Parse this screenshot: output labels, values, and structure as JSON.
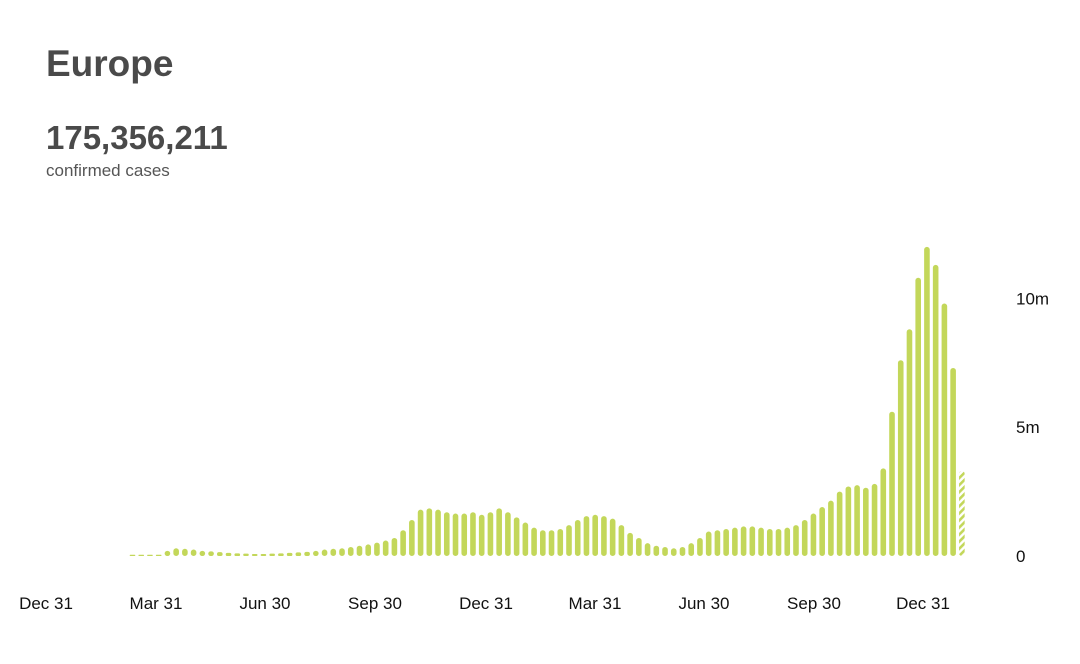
{
  "header": {
    "title": "Europe",
    "total": "175,356,211",
    "total_label": "confirmed cases"
  },
  "chart_data": {
    "type": "bar",
    "title": "Europe",
    "xlabel": "",
    "ylabel": "",
    "x_tick_labels": [
      "Dec 31",
      "Mar 31",
      "Jun 30",
      "Sep 30",
      "Dec 31",
      "Mar 31",
      "Jun 30",
      "Sep 30",
      "Dec 31"
    ],
    "y_tick_labels": [
      "0",
      "5m",
      "10m"
    ],
    "y_ticks": [
      0,
      5000000,
      10000000
    ],
    "ylim": [
      0,
      12500000
    ],
    "bar_color": "#c3d75a",
    "last_bar_partial": true,
    "grid": false,
    "unit": "weekly confirmed cases",
    "values": [
      2000,
      3000,
      8000,
      50000,
      200000,
      300000,
      280000,
      250000,
      200000,
      180000,
      150000,
      120000,
      100000,
      90000,
      80000,
      80000,
      90000,
      100000,
      120000,
      140000,
      160000,
      200000,
      250000,
      280000,
      300000,
      350000,
      400000,
      450000,
      520000,
      600000,
      700000,
      1000000,
      1400000,
      1800000,
      1850000,
      1800000,
      1700000,
      1650000,
      1650000,
      1700000,
      1600000,
      1700000,
      1850000,
      1700000,
      1500000,
      1300000,
      1100000,
      1000000,
      1000000,
      1050000,
      1200000,
      1400000,
      1550000,
      1600000,
      1550000,
      1450000,
      1200000,
      900000,
      700000,
      500000,
      400000,
      350000,
      300000,
      350000,
      500000,
      700000,
      950000,
      1000000,
      1050000,
      1100000,
      1150000,
      1150000,
      1100000,
      1050000,
      1050000,
      1100000,
      1200000,
      1400000,
      1650000,
      1900000,
      2150000,
      2500000,
      2700000,
      2750000,
      2650000,
      2800000,
      3400000,
      5600000,
      7600000,
      8800000,
      10800000,
      12000000,
      11300000,
      9800000,
      7300000,
      3300000
    ]
  }
}
